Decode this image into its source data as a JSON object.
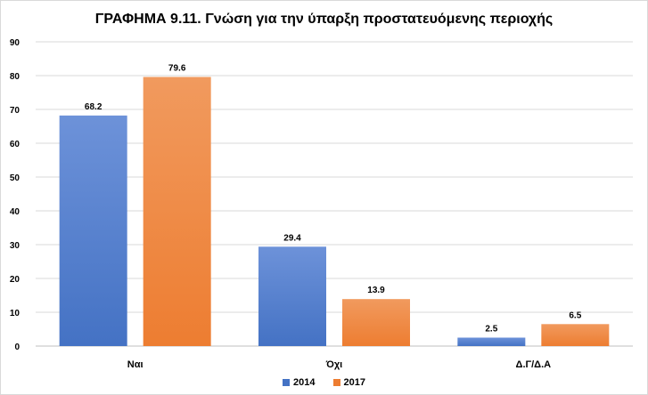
{
  "chart_data": {
    "type": "bar",
    "title": "ΓΡΑΦΗΜΑ 9.11. Γνώση για την ύπαρξη προστατευόμενης περιοχής",
    "categories": [
      "Ναι",
      "Όχι",
      "Δ.Γ/Δ.Α"
    ],
    "series": [
      {
        "name": "2014",
        "values": [
          68.2,
          29.4,
          2.5
        ],
        "color": "#4472c4",
        "color_light": "#6d92d9"
      },
      {
        "name": "2017",
        "values": [
          79.6,
          13.9,
          6.5
        ],
        "color": "#ed7d31",
        "color_light": "#f19a5e"
      }
    ],
    "ylim": [
      0,
      90
    ],
    "yticks": [
      0,
      10,
      20,
      30,
      40,
      50,
      60,
      70,
      80,
      90
    ],
    "grid": true,
    "legend": "bottom"
  }
}
